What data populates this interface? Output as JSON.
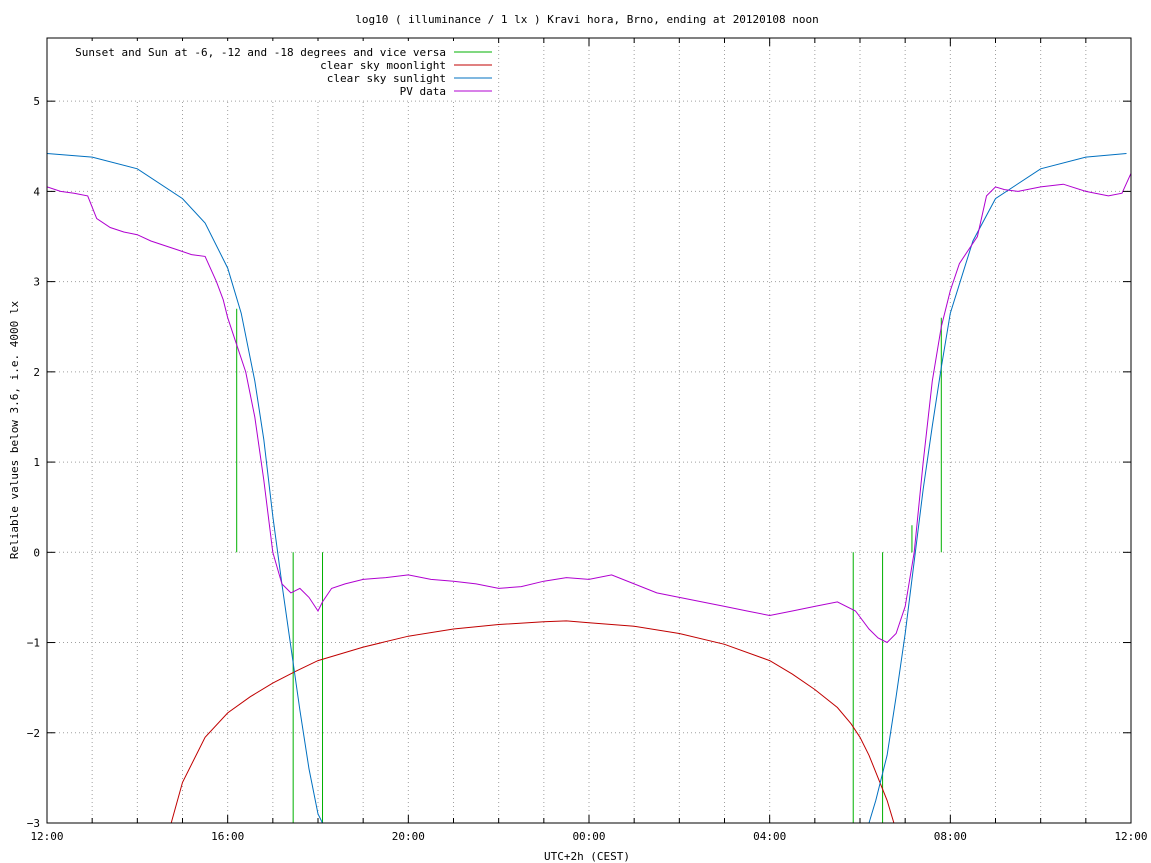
{
  "chart_data": {
    "type": "line",
    "title": "log10 ( illuminance / 1 lx ) Kravi hora, Brno, ending at 20120108 noon",
    "xlabel": "UTC+2h (CEST)",
    "ylabel": "Reliable values below 3.6, i.e. 4000 lx",
    "xlim": [
      12,
      36
    ],
    "ylim": [
      -3,
      5.7
    ],
    "x_ticks": [
      {
        "value": 12,
        "label": "12:00"
      },
      {
        "value": 16,
        "label": "16:00"
      },
      {
        "value": 20,
        "label": "20:00"
      },
      {
        "value": 24,
        "label": "00:00"
      },
      {
        "value": 28,
        "label": "04:00"
      },
      {
        "value": 32,
        "label": "08:00"
      },
      {
        "value": 36,
        "label": "12:00"
      }
    ],
    "y_ticks": [
      {
        "value": 5,
        "label": "5"
      },
      {
        "value": 4,
        "label": "4"
      },
      {
        "value": 3,
        "label": "3"
      },
      {
        "value": 2,
        "label": "2"
      },
      {
        "value": 1,
        "label": "1"
      },
      {
        "value": 0,
        "label": "0"
      },
      {
        "value": -1,
        "label": "−1"
      },
      {
        "value": -2,
        "label": "−2"
      },
      {
        "value": -3,
        "label": "−3"
      }
    ],
    "grid": true,
    "legend_position": "top-left",
    "series": [
      {
        "name": "Sunset and Sun at -6, -12 and -18 degrees and vice versa",
        "color": "#00b000",
        "segments": [
          {
            "x": 16.2,
            "y0": 0,
            "y1": 2.7
          },
          {
            "x": 17.45,
            "y0": -3,
            "y1": 0
          },
          {
            "x": 18.1,
            "y0": -3,
            "y1": 0
          },
          {
            "x": 29.85,
            "y0": -3,
            "y1": 0
          },
          {
            "x": 30.5,
            "y0": -3,
            "y1": 0
          },
          {
            "x": 31.15,
            "y0": 0,
            "y1": 0.3
          },
          {
            "x": 31.8,
            "y0": 0,
            "y1": 2.6
          }
        ]
      },
      {
        "name": "clear sky moonlight",
        "color": "#c00000",
        "x": [
          14.75,
          15.0,
          15.5,
          16.0,
          16.5,
          17.0,
          17.5,
          18.0,
          19.0,
          20.0,
          21.0,
          22.0,
          23.0,
          23.5,
          24.0,
          25.0,
          26.0,
          27.0,
          28.0,
          28.5,
          29.0,
          29.5,
          29.8,
          30.0,
          30.2,
          30.4,
          30.6,
          30.75
        ],
        "y": [
          -3.0,
          -2.55,
          -2.05,
          -1.78,
          -1.6,
          -1.45,
          -1.32,
          -1.2,
          -1.05,
          -0.93,
          -0.85,
          -0.8,
          -0.77,
          -0.76,
          -0.78,
          -0.82,
          -0.9,
          -1.02,
          -1.2,
          -1.35,
          -1.52,
          -1.72,
          -1.9,
          -2.05,
          -2.25,
          -2.5,
          -2.75,
          -3.0
        ]
      },
      {
        "name": "clear sky sunlight",
        "color": "#0070c0",
        "x": [
          12.0,
          13.0,
          14.0,
          15.0,
          15.5,
          16.0,
          16.3,
          16.6,
          16.8,
          17.0,
          17.2,
          17.4,
          17.6,
          17.8,
          18.0,
          18.1,
          30.2,
          30.35,
          30.6,
          30.8,
          31.0,
          31.2,
          31.4,
          31.6,
          31.8,
          32.0,
          32.5,
          33.0,
          34.0,
          35.0,
          35.9
        ],
        "y": [
          4.42,
          4.38,
          4.25,
          3.92,
          3.65,
          3.15,
          2.65,
          1.9,
          1.25,
          0.4,
          -0.35,
          -1.05,
          -1.75,
          -2.4,
          -2.9,
          -3.0,
          -3.0,
          -2.75,
          -2.25,
          -1.6,
          -0.9,
          -0.1,
          0.7,
          1.4,
          2.05,
          2.65,
          3.45,
          3.92,
          4.25,
          4.38,
          4.42
        ]
      },
      {
        "name": "PV data",
        "color": "#b000d0",
        "x": [
          12.0,
          12.3,
          12.6,
          12.9,
          13.1,
          13.4,
          13.7,
          14.0,
          14.3,
          14.6,
          14.9,
          15.2,
          15.5,
          15.75,
          15.9,
          16.0,
          16.2,
          16.4,
          16.6,
          16.8,
          17.0,
          17.2,
          17.4,
          17.6,
          17.8,
          18.0,
          18.1,
          18.3,
          18.6,
          19.0,
          19.5,
          20.0,
          20.5,
          21.0,
          21.5,
          22.0,
          22.5,
          23.0,
          23.5,
          24.0,
          24.5,
          25.0,
          25.5,
          26.0,
          26.5,
          27.0,
          27.5,
          28.0,
          28.5,
          29.0,
          29.5,
          29.9,
          30.2,
          30.4,
          30.6,
          30.8,
          31.0,
          31.2,
          31.4,
          31.6,
          31.8,
          32.0,
          32.2,
          32.4,
          32.6,
          32.8,
          33.0,
          33.2,
          33.5,
          34.0,
          34.5,
          35.0,
          35.5,
          35.8,
          36.0
        ],
        "y": [
          4.05,
          4.0,
          3.98,
          3.95,
          3.7,
          3.6,
          3.55,
          3.52,
          3.45,
          3.4,
          3.35,
          3.3,
          3.28,
          3.0,
          2.8,
          2.6,
          2.3,
          2.0,
          1.5,
          0.8,
          0.0,
          -0.35,
          -0.45,
          -0.4,
          -0.5,
          -0.65,
          -0.55,
          -0.4,
          -0.35,
          -0.3,
          -0.28,
          -0.25,
          -0.3,
          -0.32,
          -0.35,
          -0.4,
          -0.38,
          -0.32,
          -0.28,
          -0.3,
          -0.25,
          -0.35,
          -0.45,
          -0.5,
          -0.55,
          -0.6,
          -0.65,
          -0.7,
          -0.65,
          -0.6,
          -0.55,
          -0.65,
          -0.85,
          -0.95,
          -1.0,
          -0.9,
          -0.6,
          0.0,
          1.0,
          1.9,
          2.5,
          2.9,
          3.2,
          3.35,
          3.5,
          3.95,
          4.05,
          4.02,
          4.0,
          4.05,
          4.08,
          4.0,
          3.95,
          3.98,
          4.2
        ]
      }
    ]
  }
}
